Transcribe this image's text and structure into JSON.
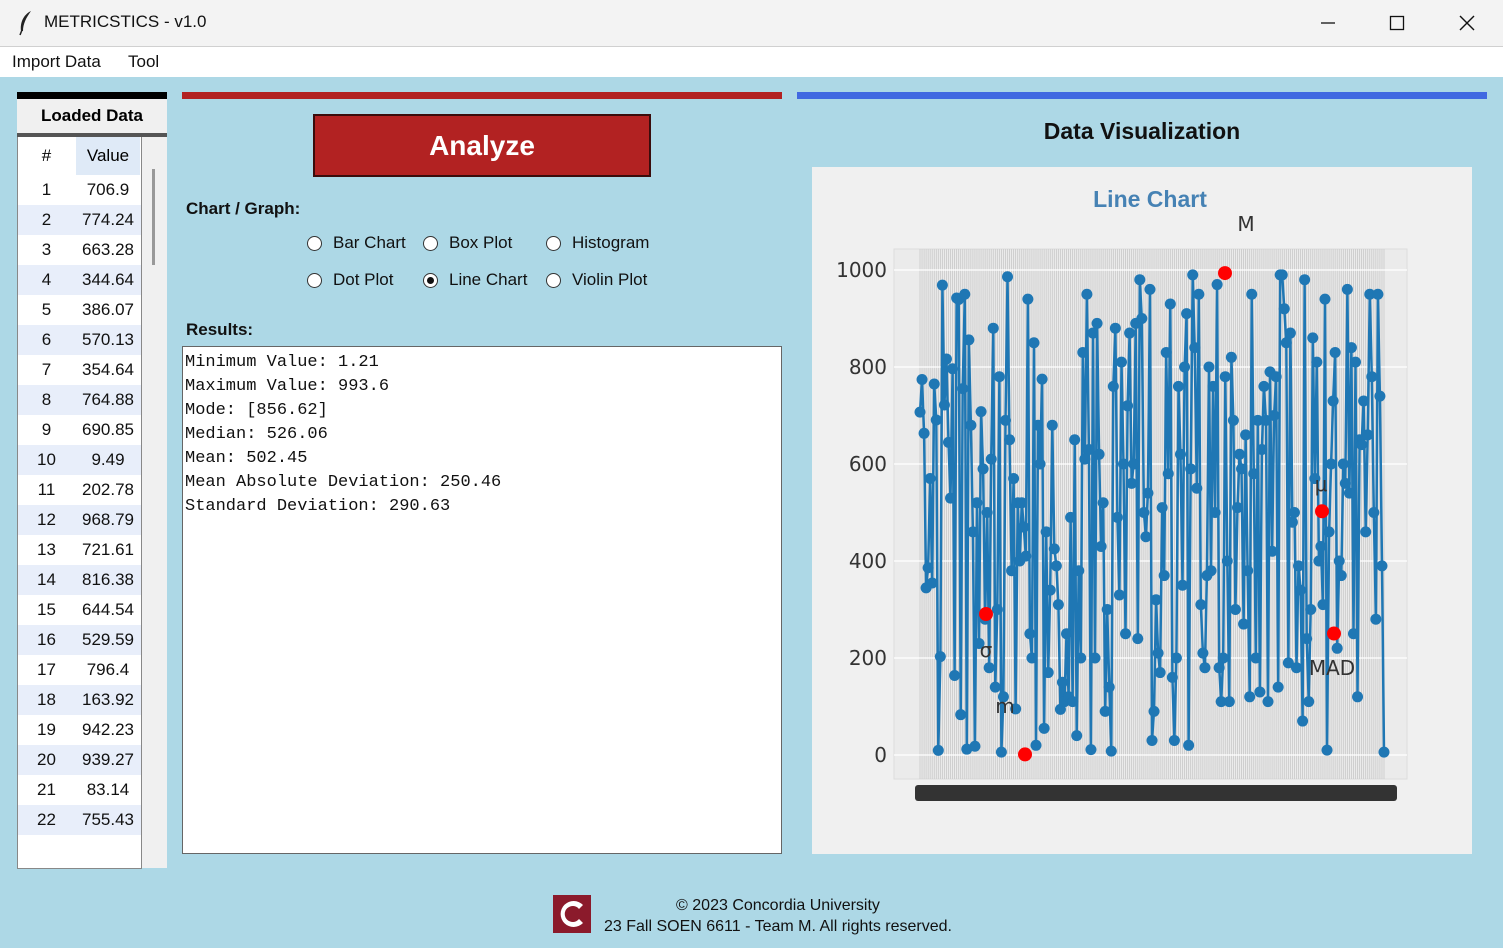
{
  "window": {
    "title": "METRICSTICS - v1.0"
  },
  "menu": [
    "Import Data",
    "Tool"
  ],
  "loaded_data": {
    "header": "Loaded Data",
    "columns": [
      "#",
      "Value"
    ],
    "rows": [
      [
        "1",
        "706.9"
      ],
      [
        "2",
        "774.24"
      ],
      [
        "3",
        "663.28"
      ],
      [
        "4",
        "344.64"
      ],
      [
        "5",
        "386.07"
      ],
      [
        "6",
        "570.13"
      ],
      [
        "7",
        "354.64"
      ],
      [
        "8",
        "764.88"
      ],
      [
        "9",
        "690.85"
      ],
      [
        "10",
        "9.49"
      ],
      [
        "11",
        "202.78"
      ],
      [
        "12",
        "968.79"
      ],
      [
        "13",
        "721.61"
      ],
      [
        "14",
        "816.38"
      ],
      [
        "15",
        "644.54"
      ],
      [
        "16",
        "529.59"
      ],
      [
        "17",
        "796.4"
      ],
      [
        "18",
        "163.92"
      ],
      [
        "19",
        "942.23"
      ],
      [
        "20",
        "939.27"
      ],
      [
        "21",
        "83.14"
      ],
      [
        "22",
        "755.43"
      ]
    ]
  },
  "controls": {
    "analyze_label": "Analyze",
    "chart_label": "Chart / Graph:",
    "options": [
      "Bar Chart",
      "Box Plot",
      "Histogram",
      "Dot Plot",
      "Line Chart",
      "Violin Plot"
    ],
    "selected": "Line Chart",
    "results_label": "Results:"
  },
  "results": [
    "Minimum Value: 1.21",
    "Maximum Value: 993.6",
    "Mode: [856.62]",
    "Median: 526.06",
    "Mean: 502.45",
    "Mean Absolute Deviation: 250.46",
    "Standard Deviation: 290.63"
  ],
  "visualization": {
    "title": "Data Visualization"
  },
  "chart_data": {
    "type": "line",
    "title": "Line Chart",
    "ylim": [
      0,
      1000
    ],
    "yticks": [
      0,
      200,
      400,
      600,
      800,
      1000
    ],
    "ytick_labels": [
      "0",
      "200",
      "400",
      "600",
      "800",
      "1000"
    ],
    "series_color": "#1f77b4",
    "values": [
      706.9,
      774.24,
      663.28,
      344.64,
      386.07,
      570.13,
      354.64,
      764.88,
      690.85,
      9.49,
      202.78,
      968.79,
      721.61,
      816.38,
      644.54,
      529.59,
      796.4,
      163.92,
      942.23,
      939.27,
      83.14,
      755.43,
      950,
      12,
      856,
      680,
      460,
      18,
      520,
      230,
      708,
      590,
      280,
      500,
      180,
      610,
      880,
      140,
      300,
      780,
      6,
      120,
      690,
      986,
      650,
      380,
      570,
      95,
      520,
      400,
      520,
      470,
      410,
      940,
      250,
      200,
      850,
      20,
      680,
      600,
      775,
      55,
      460,
      170,
      340,
      680,
      425,
      390,
      310,
      94,
      150,
      110,
      250,
      120,
      490,
      110,
      650,
      40,
      380,
      200,
      830,
      610,
      950,
      630,
      11,
      870,
      200,
      890,
      620,
      430,
      520,
      90,
      300,
      140,
      8,
      760,
      880,
      490,
      330,
      810,
      600,
      250,
      720,
      870,
      560,
      600,
      890,
      240,
      980,
      900,
      500,
      450,
      540,
      960,
      30,
      90,
      320,
      210,
      170,
      510,
      370,
      830,
      580,
      930,
      160,
      30,
      200,
      760,
      620,
      350,
      800,
      910,
      20,
      590,
      990,
      840,
      550,
      950,
      310,
      210,
      180,
      370,
      800,
      380,
      760,
      500,
      970,
      180,
      110,
      200,
      780,
      400,
      110,
      820,
      690,
      300,
      510,
      620,
      590,
      270,
      660,
      380,
      120,
      950,
      580,
      200,
      690,
      130,
      630,
      760,
      690,
      110,
      790,
      420,
      700,
      780,
      140,
      990,
      990,
      920,
      850,
      190,
      870,
      480,
      500,
      180,
      390,
      340,
      70,
      980,
      240,
      110,
      300,
      860,
      570,
      810,
      400,
      430,
      310,
      940,
      10,
      460,
      600,
      730,
      830,
      220,
      400,
      370,
      600,
      560,
      960,
      540,
      840,
      250,
      810,
      120,
      650,
      640,
      730,
      460,
      660,
      950,
      780,
      500,
      280,
      950,
      740,
      390,
      6
    ],
    "markers": [
      {
        "label": "M",
        "value": 993.6
      },
      {
        "label": "μ",
        "value": 502.45
      },
      {
        "label": "MAD",
        "value": 250.46
      },
      {
        "label": "σ",
        "value": 290.63
      },
      {
        "label": "m",
        "value": 1.21
      }
    ],
    "marker_color": "#ff0000"
  },
  "footer": {
    "line1": "© 2023 Concordia University",
    "line2": "23 Fall SOEN 6611 - Team M. All rights reserved.",
    "logo_color": "#8b1a2b"
  }
}
